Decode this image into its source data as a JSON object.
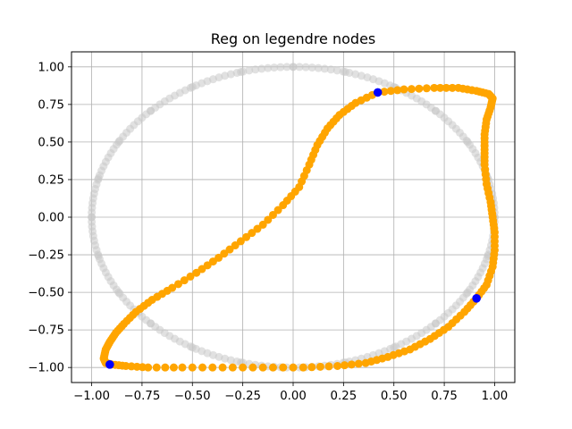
{
  "chart_data": {
    "type": "scatter",
    "title": "Reg on legendre nodes",
    "xlabel": "",
    "ylabel": "",
    "xlim": [
      -1.1,
      1.1
    ],
    "ylim": [
      -1.1,
      1.1
    ],
    "grid": true,
    "legend": "none",
    "x_ticks": [
      -1.0,
      -0.75,
      -0.5,
      -0.25,
      0.0,
      0.25,
      0.5,
      0.75,
      1.0
    ],
    "y_ticks": [
      -1.0,
      -0.75,
      -0.5,
      -0.25,
      0.0,
      0.25,
      0.5,
      0.75,
      1.0
    ],
    "x_tick_labels": [
      "−1.00",
      "−0.75",
      "−0.50",
      "−0.25",
      "0.00",
      "0.25",
      "0.50",
      "0.75",
      "1.00"
    ],
    "y_tick_labels": [
      "−1.00",
      "−0.75",
      "−0.50",
      "−0.25",
      "0.00",
      "0.25",
      "0.50",
      "0.75",
      "1.00"
    ],
    "colors": {
      "circle": "#c8c8c8",
      "curve": "#ffa500",
      "nodes": "#0000ff",
      "grid": "#b0b0b0"
    },
    "series": [
      {
        "role": "unit-circle",
        "points": [
          [
            1.0,
            0.0
          ],
          [
            0.966,
            0.259
          ],
          [
            0.866,
            0.5
          ],
          [
            0.707,
            0.707
          ],
          [
            0.5,
            0.866
          ],
          [
            0.259,
            0.966
          ],
          [
            0.0,
            1.0
          ],
          [
            -0.259,
            0.966
          ],
          [
            -0.5,
            0.866
          ],
          [
            -0.707,
            0.707
          ],
          [
            -0.866,
            0.5
          ],
          [
            -0.966,
            0.259
          ],
          [
            -1.0,
            0.0
          ],
          [
            -0.966,
            -0.259
          ],
          [
            -0.866,
            -0.5
          ],
          [
            -0.707,
            -0.707
          ],
          [
            -0.5,
            -0.866
          ],
          [
            -0.259,
            -0.966
          ],
          [
            0.0,
            -1.0
          ],
          [
            0.259,
            -0.966
          ],
          [
            0.5,
            -0.866
          ],
          [
            0.707,
            -0.707
          ],
          [
            0.866,
            -0.5
          ],
          [
            0.966,
            -0.259
          ]
        ]
      },
      {
        "role": "regression-curve",
        "points": [
          [
            0.42,
            0.83
          ],
          [
            0.55,
            0.85
          ],
          [
            0.7,
            0.86
          ],
          [
            0.82,
            0.86
          ],
          [
            0.91,
            0.84
          ],
          [
            0.97,
            0.82
          ],
          [
            0.99,
            0.79
          ],
          [
            0.98,
            0.73
          ],
          [
            0.96,
            0.65
          ],
          [
            0.95,
            0.55
          ],
          [
            0.95,
            0.45
          ],
          [
            0.95,
            0.35
          ],
          [
            0.96,
            0.22
          ],
          [
            0.98,
            0.1
          ],
          [
            0.99,
            0.0
          ],
          [
            1.0,
            -0.1
          ],
          [
            1.0,
            -0.22
          ],
          [
            0.99,
            -0.33
          ],
          [
            0.96,
            -0.45
          ],
          [
            0.91,
            -0.54
          ],
          [
            0.85,
            -0.63
          ],
          [
            0.77,
            -0.73
          ],
          [
            0.68,
            -0.81
          ],
          [
            0.58,
            -0.88
          ],
          [
            0.47,
            -0.93
          ],
          [
            0.36,
            -0.97
          ],
          [
            0.22,
            -0.99
          ],
          [
            0.05,
            -1.0
          ],
          [
            -0.15,
            -1.0
          ],
          [
            -0.35,
            -1.0
          ],
          [
            -0.55,
            -1.0
          ],
          [
            -0.72,
            -1.0
          ],
          [
            -0.83,
            -0.99
          ],
          [
            -0.9,
            -0.98
          ],
          [
            -0.93,
            -0.97
          ],
          [
            -0.94,
            -0.94
          ],
          [
            -0.93,
            -0.88
          ],
          [
            -0.91,
            -0.83
          ],
          [
            -0.88,
            -0.77
          ],
          [
            -0.84,
            -0.71
          ],
          [
            -0.78,
            -0.63
          ],
          [
            -0.7,
            -0.55
          ],
          [
            -0.6,
            -0.47
          ],
          [
            -0.48,
            -0.37
          ],
          [
            -0.37,
            -0.27
          ],
          [
            -0.26,
            -0.16
          ],
          [
            -0.15,
            -0.05
          ],
          [
            -0.05,
            0.08
          ],
          [
            0.03,
            0.2
          ],
          [
            0.08,
            0.35
          ],
          [
            0.12,
            0.48
          ],
          [
            0.17,
            0.59
          ],
          [
            0.23,
            0.68
          ],
          [
            0.31,
            0.76
          ],
          [
            0.42,
            0.83
          ]
        ]
      },
      {
        "role": "nodes",
        "points": [
          [
            0.42,
            0.83
          ],
          [
            0.91,
            -0.54
          ],
          [
            -0.91,
            -0.98
          ]
        ]
      }
    ]
  }
}
